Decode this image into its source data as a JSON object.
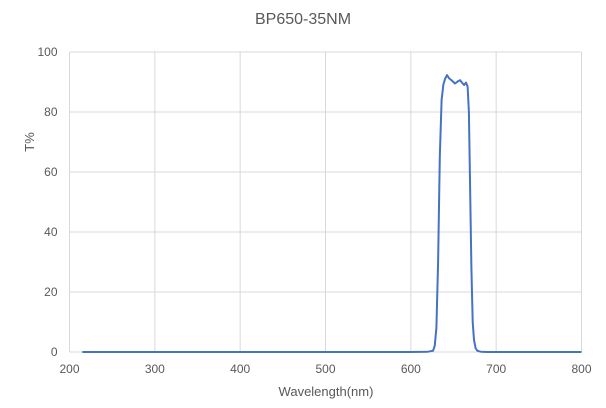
{
  "chart_data": {
    "type": "line",
    "title": "BP650-35NM",
    "xlabel": "Wavelength(nm)",
    "ylabel": "T%",
    "xlim": [
      200,
      800
    ],
    "ylim": [
      0,
      100
    ],
    "xticks": [
      200,
      300,
      400,
      500,
      600,
      700,
      800
    ],
    "yticks": [
      0,
      20,
      40,
      60,
      80,
      100
    ],
    "grid": true,
    "legend": null,
    "series": [
      {
        "name": "T%",
        "color": "#4472C4",
        "x": [
          215,
          400,
          600,
          620,
          626,
          628,
          630,
          632,
          634,
          636,
          638,
          640,
          642.4,
          645,
          648,
          651.8,
          655,
          657.7,
          660,
          662.4,
          664.7,
          666.5,
          668,
          669.5,
          671,
          672.5,
          674,
          676,
          678,
          682,
          690,
          700,
          800
        ],
        "y": [
          0,
          0,
          0,
          0.1,
          0.4,
          2,
          8,
          30,
          65,
          84,
          89,
          91,
          92.3,
          91.2,
          90.5,
          89.5,
          90.2,
          90.6,
          89.8,
          89.0,
          89.8,
          88.5,
          80,
          55,
          28,
          10,
          4,
          1.2,
          0.4,
          0.1,
          0,
          0,
          0
        ]
      }
    ]
  }
}
